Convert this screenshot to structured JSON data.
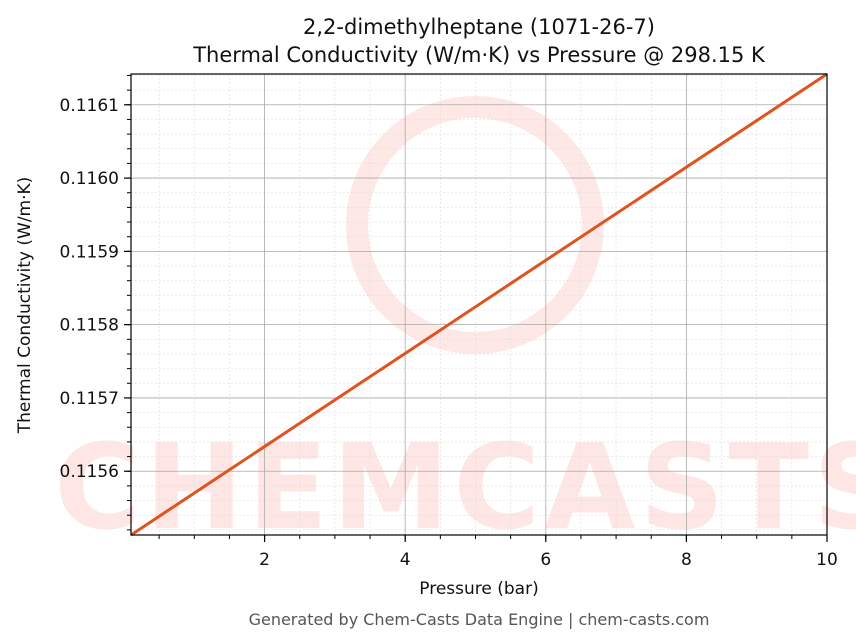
{
  "chart_data": {
    "type": "line",
    "title": "2,2-dimethylheptane (1071-26-7)",
    "subtitle": "Thermal Conductivity (W/m·K) vs Pressure @ 298.15 K",
    "xlabel": "Pressure (bar)",
    "ylabel": "Thermal Conductivity (W/m·K)",
    "xlim": [
      0.1,
      10
    ],
    "ylim": [
      0.115513,
      0.116142
    ],
    "x_ticks": [
      2,
      4,
      6,
      8,
      10
    ],
    "y_ticks": [
      0.1156,
      0.1157,
      0.1158,
      0.1159,
      0.116,
      0.1161
    ],
    "y_tick_labels": [
      "0.1156",
      "0.1157",
      "0.1158",
      "0.1159",
      "0.1160",
      "0.1161"
    ],
    "grid": true,
    "series": [
      {
        "x": [
          0.1,
          10
        ],
        "y": [
          0.115513,
          0.116142
        ],
        "color": "#e0521e"
      }
    ]
  },
  "watermark": "CHEMCASTS",
  "footer": "Generated by Chem-Casts Data Engine | chem-casts.com"
}
